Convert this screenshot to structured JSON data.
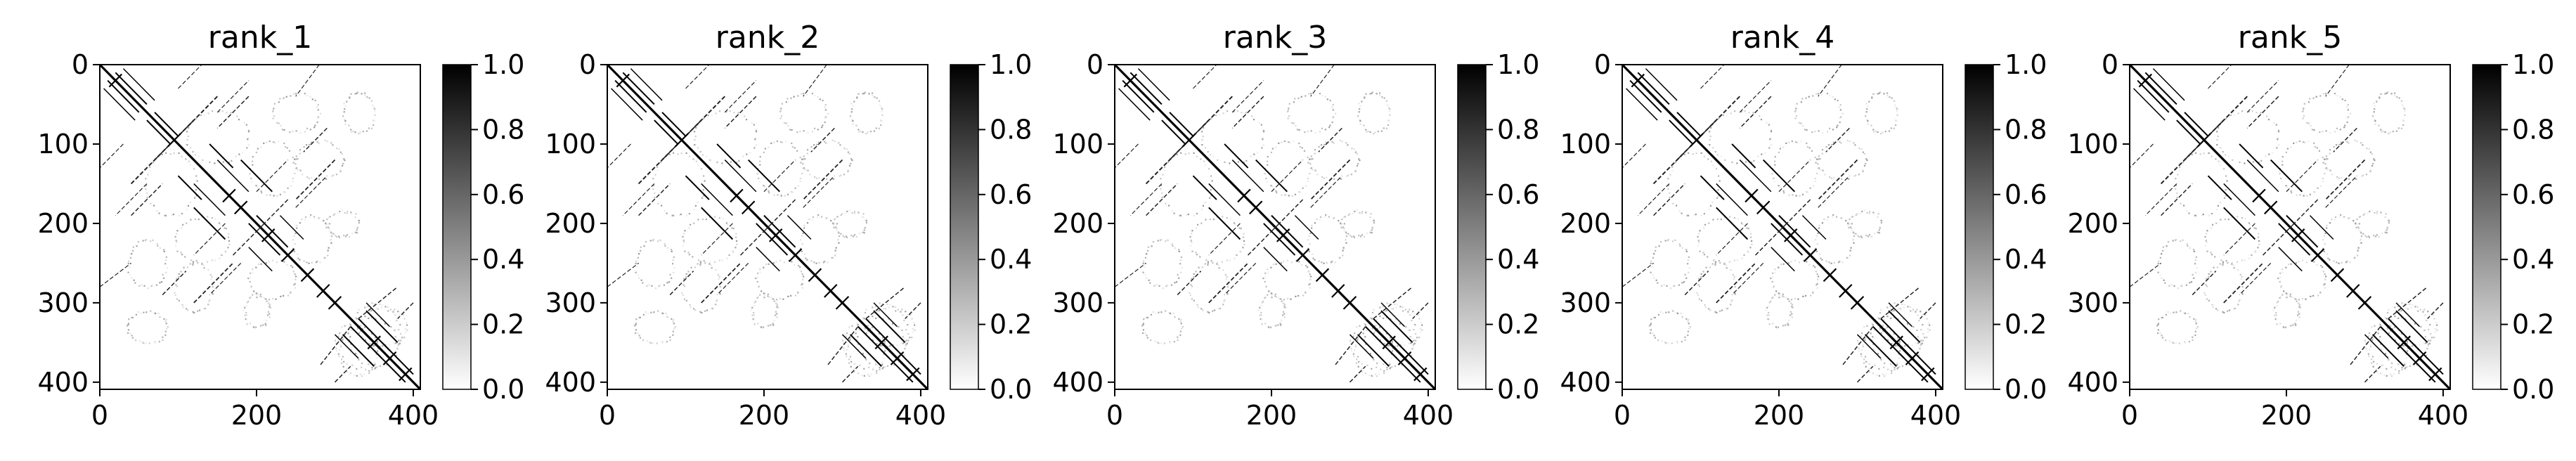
{
  "chart_data": [
    {
      "type": "heatmap",
      "title": "rank_1",
      "xticks": [
        0,
        200,
        400
      ],
      "yticks": [
        0,
        100,
        200,
        300,
        400
      ],
      "xlim": [
        0,
        409
      ],
      "ylim": [
        409,
        0
      ],
      "colorbar": {
        "ticks": [
          "0.0",
          "0.2",
          "0.4",
          "0.6",
          "0.8",
          "1.0"
        ],
        "range": [
          0,
          1
        ],
        "colormap": "Greys"
      }
    },
    {
      "type": "heatmap",
      "title": "rank_2",
      "xticks": [
        0,
        200,
        400
      ],
      "yticks": [
        0,
        100,
        200,
        300,
        400
      ],
      "xlim": [
        0,
        409
      ],
      "ylim": [
        409,
        0
      ],
      "colorbar": {
        "ticks": [
          "0.0",
          "0.2",
          "0.4",
          "0.6",
          "0.8",
          "1.0"
        ],
        "range": [
          0,
          1
        ],
        "colormap": "Greys"
      }
    },
    {
      "type": "heatmap",
      "title": "rank_3",
      "xticks": [
        0,
        200,
        400
      ],
      "yticks": [
        0,
        100,
        200,
        300,
        400
      ],
      "xlim": [
        0,
        409
      ],
      "ylim": [
        409,
        0
      ],
      "colorbar": {
        "ticks": [
          "0.0",
          "0.2",
          "0.4",
          "0.6",
          "0.8",
          "1.0"
        ],
        "range": [
          0,
          1
        ],
        "colormap": "Greys"
      }
    },
    {
      "type": "heatmap",
      "title": "rank_4",
      "xticks": [
        0,
        200,
        400
      ],
      "yticks": [
        0,
        100,
        200,
        300,
        400
      ],
      "xlim": [
        0,
        409
      ],
      "ylim": [
        409,
        0
      ],
      "colorbar": {
        "ticks": [
          "0.0",
          "0.2",
          "0.4",
          "0.6",
          "0.8",
          "1.0"
        ],
        "range": [
          0,
          1
        ],
        "colormap": "Greys"
      }
    },
    {
      "type": "heatmap",
      "title": "rank_5",
      "xticks": [
        0,
        200,
        400
      ],
      "yticks": [
        0,
        100,
        200,
        300,
        400
      ],
      "xlim": [
        0,
        409
      ],
      "ylim": [
        409,
        0
      ],
      "colorbar": {
        "ticks": [
          "0.0",
          "0.2",
          "0.4",
          "0.6",
          "0.8",
          "1.0"
        ],
        "range": [
          0,
          1
        ],
        "colormap": "Greys"
      }
    }
  ]
}
